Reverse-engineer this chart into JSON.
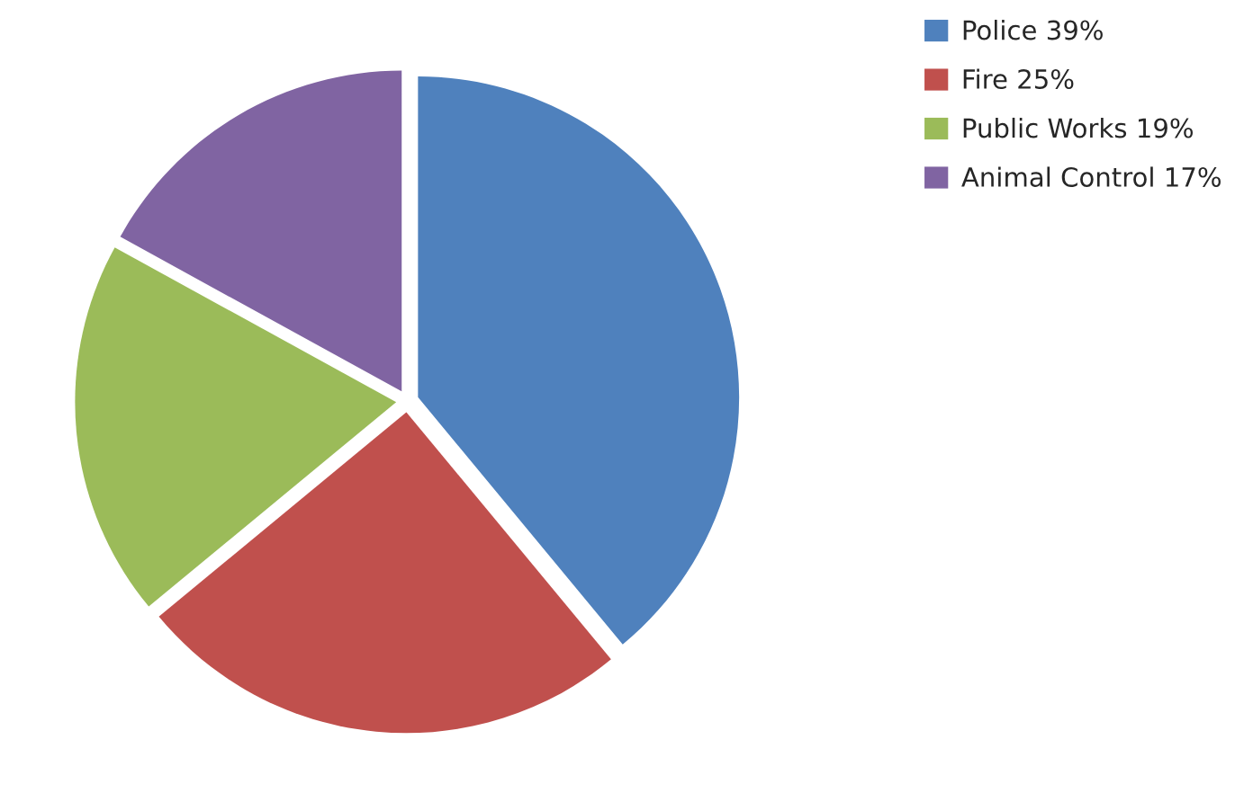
{
  "chart_data": {
    "type": "pie",
    "categories": [
      "Police 39%",
      "Fire 25%",
      "Public Works 19%",
      "Animal Control 17%"
    ],
    "values": [
      39,
      25,
      19,
      17
    ],
    "colors": [
      "#4f81bd",
      "#c0504d",
      "#9bbb59",
      "#8064a2"
    ],
    "legend": "top right"
  }
}
